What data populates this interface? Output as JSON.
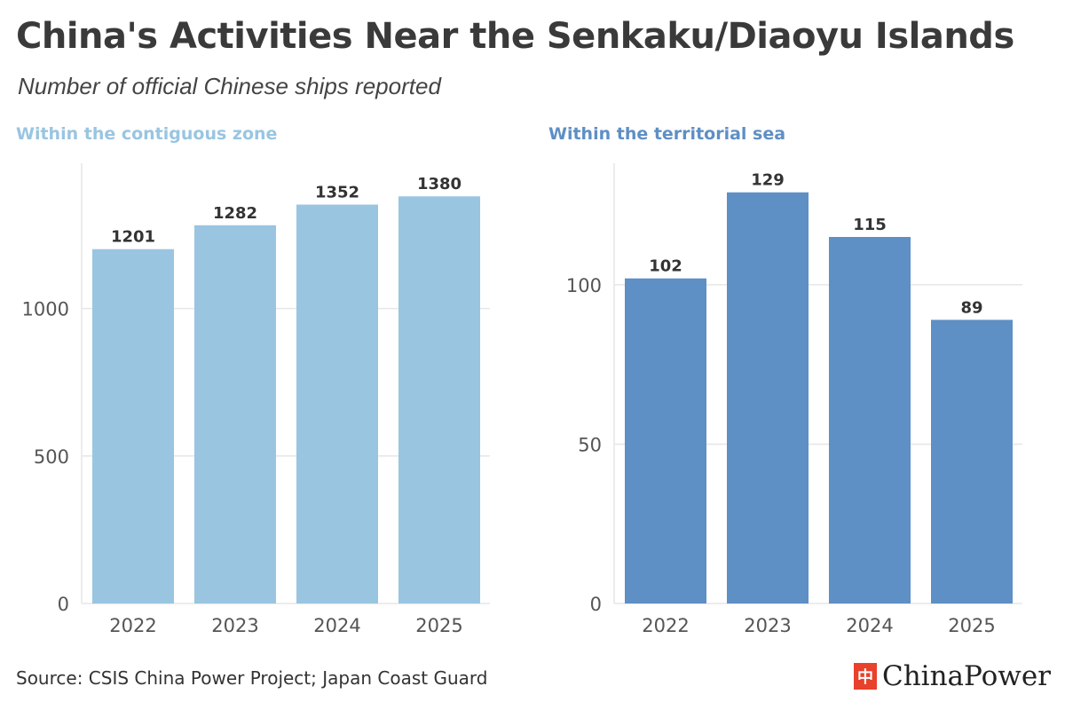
{
  "title": "China's Activities Near the Senkaku/Diaoyu Islands",
  "subtitle": "Number of official Chinese ships reported",
  "source": "Source: CSIS China Power Project; Japan Coast Guard",
  "logo": {
    "mark": "中",
    "text": "ChinaPower",
    "mark_color": "#e8412c"
  },
  "colors": {
    "contiguous": "#99c5e1",
    "territorial": "#5e8fc5",
    "grid": "#e6e6e6",
    "axis_text": "#555555",
    "label_text": "#333333"
  },
  "chart_data": [
    {
      "type": "bar",
      "title": "Within the contiguous zone",
      "categories": [
        "2022",
        "2023",
        "2024",
        "2025"
      ],
      "values": [
        1201,
        1282,
        1352,
        1380
      ],
      "yticks": [
        0,
        500,
        1000
      ],
      "ylim": [
        0,
        1480
      ],
      "xlabel": "",
      "ylabel": "",
      "grid": true
    },
    {
      "type": "bar",
      "title": "Within the territorial sea",
      "categories": [
        "2022",
        "2023",
        "2024",
        "2025"
      ],
      "values": [
        102,
        129,
        115,
        89
      ],
      "yticks": [
        0,
        50,
        100
      ],
      "ylim": [
        0,
        137
      ],
      "xlabel": "",
      "ylabel": "",
      "grid": true
    }
  ]
}
